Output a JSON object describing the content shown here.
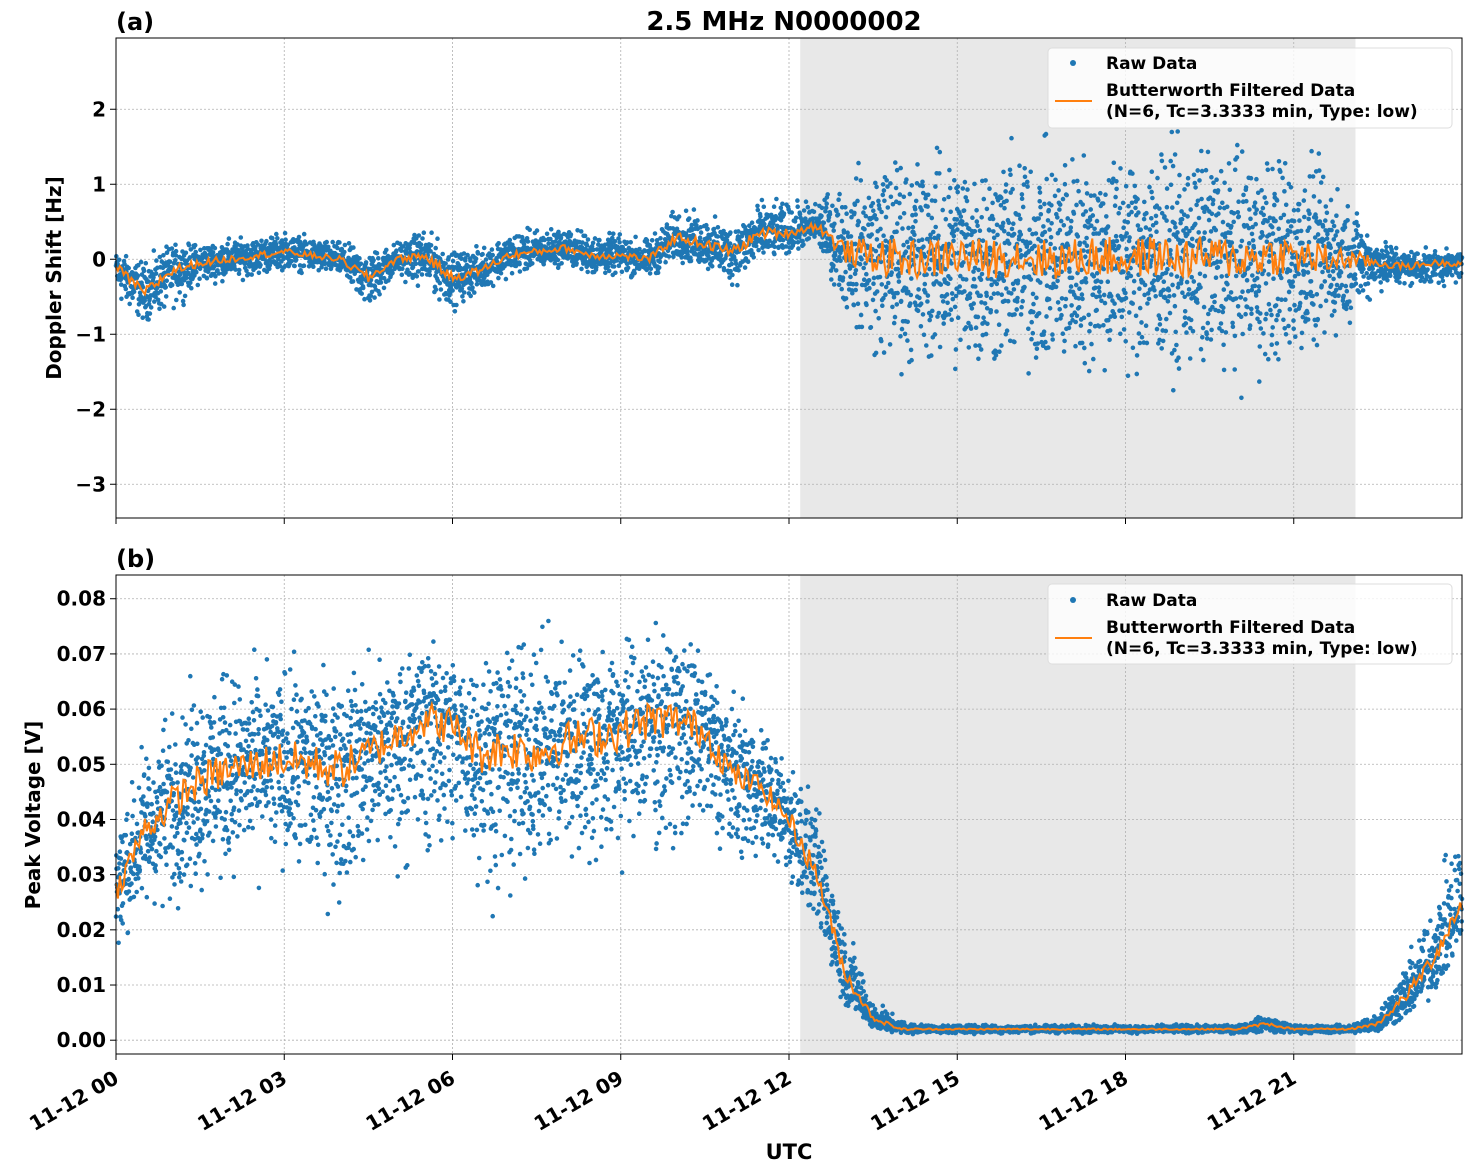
{
  "figure": {
    "title": "2.5 MHz N0000002",
    "xlabel": "UTC"
  },
  "chart_data": [
    {
      "type": "scatter",
      "panel_label": "(a)",
      "ylabel": "Doppler Shift [Hz]",
      "xlim_hours": [
        0,
        24
      ],
      "ylim": [
        -3.45,
        2.95
      ],
      "yticks": [
        -3,
        -2,
        -1,
        0,
        1,
        2
      ],
      "ytick_labels": [
        "−3",
        "−2",
        "−1",
        "0",
        "1",
        "2"
      ],
      "xticks_hours": [
        0,
        3,
        6,
        9,
        12,
        15,
        18,
        21
      ],
      "xtick_labels": [
        "11-12 00",
        "11-12 03",
        "11-12 06",
        "11-12 09",
        "11-12 12",
        "11-12 15",
        "11-12 18",
        "11-12 21"
      ],
      "grid": true,
      "shaded_region_hours": [
        12.2,
        22.1
      ],
      "legend": {
        "placement": "upper right",
        "raw_label": "Raw Data",
        "filtered_label_line1": "Butterworth Filtered Data",
        "filtered_label_line2": "(N=6, Tc=3.3333 min, Type: low)"
      },
      "series": [
        {
          "name": "Butterworth Filtered Data",
          "kind": "line",
          "color": "#ff7f0e",
          "x_hours": [
            0,
            0.5,
            1,
            1.5,
            2,
            2.5,
            3,
            3.5,
            4,
            4.5,
            5,
            5.5,
            6,
            6.5,
            7,
            7.5,
            8,
            8.5,
            9,
            9.5,
            10,
            10.5,
            11,
            11.5,
            12,
            12.5,
            13,
            13.5,
            14,
            14.5,
            15,
            15.5,
            16,
            16.5,
            17,
            17.5,
            18,
            18.5,
            19,
            19.5,
            20,
            20.5,
            21,
            21.5,
            22,
            22.5,
            23,
            23.5,
            24
          ],
          "y": [
            -0.1,
            -0.45,
            -0.15,
            -0.05,
            0.0,
            0.05,
            0.1,
            0.05,
            0.0,
            -0.25,
            0.0,
            0.05,
            -0.25,
            -0.15,
            0.05,
            0.1,
            0.15,
            0.05,
            0.05,
            0.0,
            0.3,
            0.2,
            0.1,
            0.35,
            0.35,
            0.45,
            0.1,
            0.05,
            0.0,
            0.0,
            0.05,
            0.0,
            0.05,
            0.0,
            0.0,
            0.05,
            0.0,
            0.05,
            0.0,
            0.05,
            0.0,
            0.05,
            0.05,
            0.0,
            0.0,
            -0.05,
            -0.1,
            -0.05,
            -0.05
          ],
          "raw_spread_upper": [
            0.15,
            0.1,
            0.3,
            0.3,
            0.35,
            0.35,
            0.45,
            0.35,
            0.3,
            0.2,
            0.3,
            0.5,
            0.2,
            0.25,
            0.45,
            0.5,
            0.5,
            0.45,
            0.4,
            0.35,
            0.8,
            0.7,
            0.55,
            0.9,
            0.85,
            0.9,
            1.3,
            1.8,
            1.9,
            1.8,
            1.9,
            1.9,
            1.9,
            1.9,
            1.9,
            1.9,
            1.9,
            1.9,
            1.9,
            1.9,
            1.9,
            1.9,
            1.8,
            1.6,
            1.0,
            0.4,
            0.2,
            0.15,
            0.15
          ],
          "raw_spread_lower": [
            -0.7,
            -0.95,
            -0.8,
            -0.4,
            -0.35,
            -0.3,
            -0.2,
            -0.25,
            -0.3,
            -0.85,
            -0.3,
            -0.5,
            -0.8,
            -0.5,
            -0.3,
            -0.2,
            -0.15,
            -0.3,
            -0.3,
            -0.35,
            -0.1,
            -0.25,
            -0.5,
            -0.2,
            0.0,
            0.1,
            -0.9,
            -1.7,
            -1.9,
            -1.9,
            -2.0,
            -2.0,
            -2.0,
            -2.0,
            -2.0,
            -2.0,
            -2.0,
            -2.0,
            -2.0,
            -2.0,
            -2.0,
            -2.0,
            -1.9,
            -1.6,
            -1.0,
            -0.5,
            -0.45,
            -0.45,
            -0.4
          ]
        }
      ]
    },
    {
      "type": "scatter",
      "panel_label": "(b)",
      "ylabel": "Peak Voltage [V]",
      "xlim_hours": [
        0,
        24
      ],
      "ylim": [
        -0.0025,
        0.0843
      ],
      "yticks": [
        0.0,
        0.01,
        0.02,
        0.03,
        0.04,
        0.05,
        0.06,
        0.07,
        0.08
      ],
      "ytick_labels": [
        "0.00",
        "0.01",
        "0.02",
        "0.03",
        "0.04",
        "0.05",
        "0.06",
        "0.07",
        "0.08"
      ],
      "xticks_hours": [
        0,
        3,
        6,
        9,
        12,
        15,
        18,
        21
      ],
      "xtick_labels": [
        "11-12 00",
        "11-12 03",
        "11-12 06",
        "11-12 09",
        "11-12 12",
        "11-12 15",
        "11-12 18",
        "11-12 21"
      ],
      "grid": true,
      "shaded_region_hours": [
        12.2,
        22.1
      ],
      "legend": {
        "placement": "upper right",
        "raw_label": "Raw Data",
        "filtered_label_line1": "Butterworth Filtered Data",
        "filtered_label_line2": "(N=6, Tc=3.3333 min, Type: low)"
      },
      "series": [
        {
          "name": "Butterworth Filtered Data",
          "kind": "line",
          "color": "#ff7f0e",
          "x_hours": [
            0,
            0.5,
            1,
            1.5,
            2,
            2.5,
            3,
            3.5,
            4,
            4.5,
            5,
            5.5,
            6,
            6.5,
            7,
            7.5,
            8,
            8.5,
            9,
            9.5,
            10,
            10.5,
            11,
            11.5,
            12,
            12.5,
            13,
            13.5,
            14,
            14.5,
            15,
            15.5,
            16,
            16.5,
            17,
            17.5,
            18,
            18.5,
            19,
            19.5,
            20,
            20.5,
            21,
            21.5,
            22,
            22.5,
            23,
            23.5,
            24
          ],
          "y": [
            0.027,
            0.038,
            0.043,
            0.047,
            0.049,
            0.05,
            0.051,
            0.05,
            0.049,
            0.052,
            0.055,
            0.058,
            0.057,
            0.052,
            0.053,
            0.052,
            0.054,
            0.055,
            0.056,
            0.058,
            0.058,
            0.056,
            0.048,
            0.046,
            0.04,
            0.03,
            0.012,
            0.004,
            0.002,
            0.002,
            0.002,
            0.002,
            0.002,
            0.002,
            0.002,
            0.002,
            0.002,
            0.002,
            0.002,
            0.002,
            0.002,
            0.003,
            0.002,
            0.002,
            0.002,
            0.003,
            0.008,
            0.015,
            0.025
          ],
          "raw_spread_upper": [
            0.042,
            0.058,
            0.065,
            0.07,
            0.072,
            0.072,
            0.072,
            0.073,
            0.073,
            0.073,
            0.073,
            0.076,
            0.074,
            0.075,
            0.076,
            0.078,
            0.078,
            0.078,
            0.077,
            0.078,
            0.079,
            0.074,
            0.066,
            0.06,
            0.054,
            0.046,
            0.025,
            0.008,
            0.004,
            0.003,
            0.003,
            0.003,
            0.003,
            0.003,
            0.003,
            0.003,
            0.003,
            0.003,
            0.003,
            0.003,
            0.003,
            0.005,
            0.003,
            0.003,
            0.003,
            0.006,
            0.016,
            0.028,
            0.046
          ],
          "raw_spread_lower": [
            0.013,
            0.018,
            0.02,
            0.022,
            0.025,
            0.026,
            0.022,
            0.02,
            0.02,
            0.024,
            0.024,
            0.026,
            0.026,
            0.022,
            0.018,
            0.024,
            0.025,
            0.022,
            0.024,
            0.027,
            0.028,
            0.029,
            0.028,
            0.03,
            0.025,
            0.018,
            0.004,
            0.001,
            0.001,
            0.001,
            0.001,
            0.001,
            0.001,
            0.001,
            0.001,
            0.001,
            0.001,
            0.001,
            0.001,
            0.001,
            0.001,
            0.001,
            0.001,
            0.001,
            0.001,
            0.001,
            0.002,
            0.006,
            0.012
          ]
        }
      ]
    }
  ],
  "colors": {
    "raw": "#1f77b4",
    "filtered": "#ff7f0e",
    "shade": "#e8e8e8",
    "grid": "#b0b0b0"
  }
}
